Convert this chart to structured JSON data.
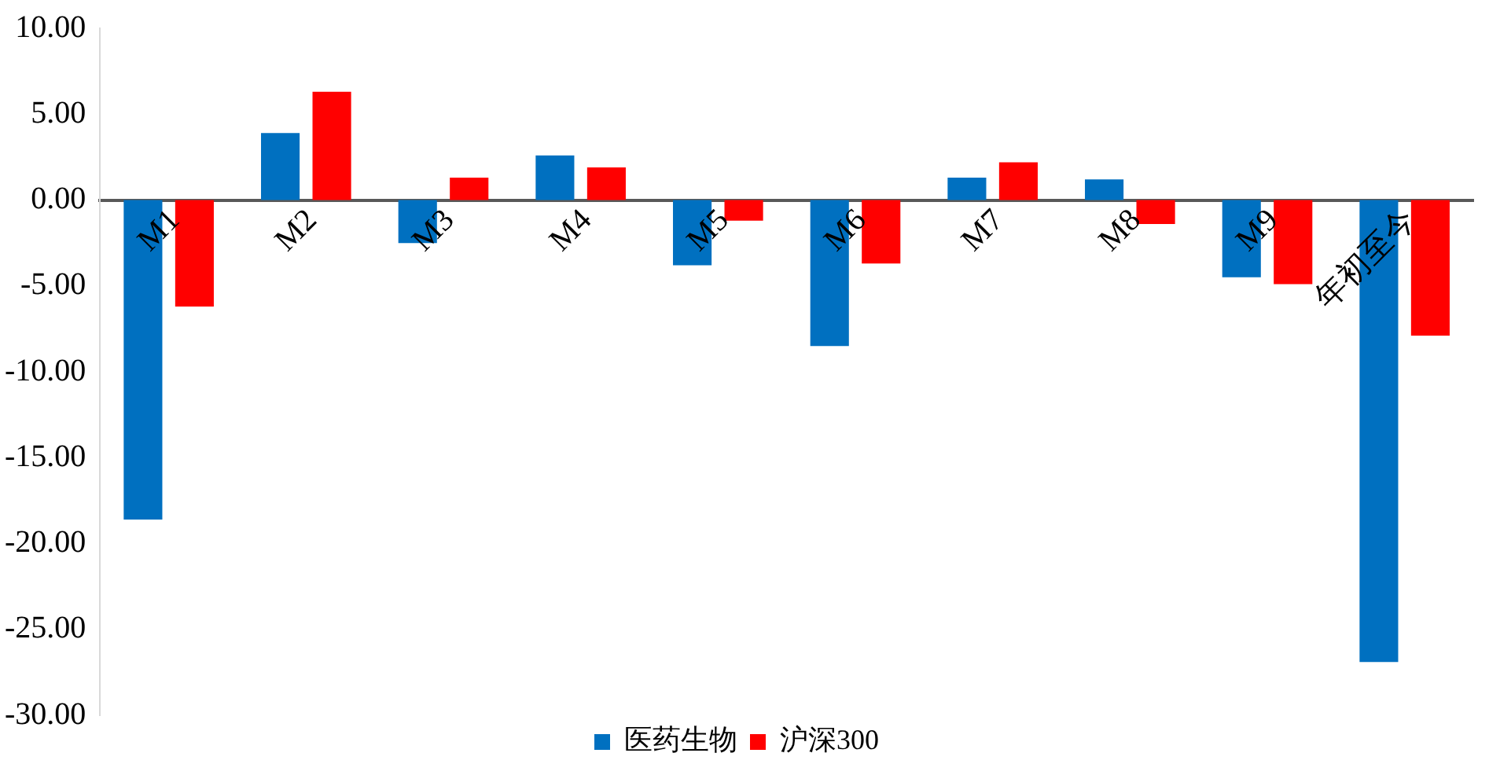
{
  "chart_data": {
    "type": "bar",
    "categories": [
      "M1",
      "M2",
      "M3",
      "M4",
      "M5",
      "M6",
      "M7",
      "M8",
      "M9",
      "年初至今"
    ],
    "series": [
      {
        "name": "医药生物",
        "color": "#0070c0",
        "values": [
          -18.6,
          3.9,
          -2.5,
          2.6,
          -3.8,
          -8.5,
          1.3,
          1.2,
          -4.5,
          -26.9
        ]
      },
      {
        "name": "沪深300",
        "color": "#ff0000",
        "values": [
          -6.2,
          6.3,
          1.3,
          1.9,
          -1.2,
          -3.7,
          2.2,
          -1.4,
          -4.9,
          -7.9
        ]
      }
    ],
    "ylim": [
      -30,
      10
    ],
    "yticks": [
      {
        "value": 10,
        "label": "10.00"
      },
      {
        "value": 5,
        "label": "5.00"
      },
      {
        "value": 0,
        "label": "0.00"
      },
      {
        "value": -5,
        "label": "-5.00"
      },
      {
        "value": -10,
        "label": "-10.00"
      },
      {
        "value": -15,
        "label": "-15.00"
      },
      {
        "value": -20,
        "label": "-20.00"
      },
      {
        "value": -25,
        "label": "-25.00"
      },
      {
        "value": -30,
        "label": "-30.00"
      }
    ],
    "grid": false,
    "legend": "bottom"
  }
}
